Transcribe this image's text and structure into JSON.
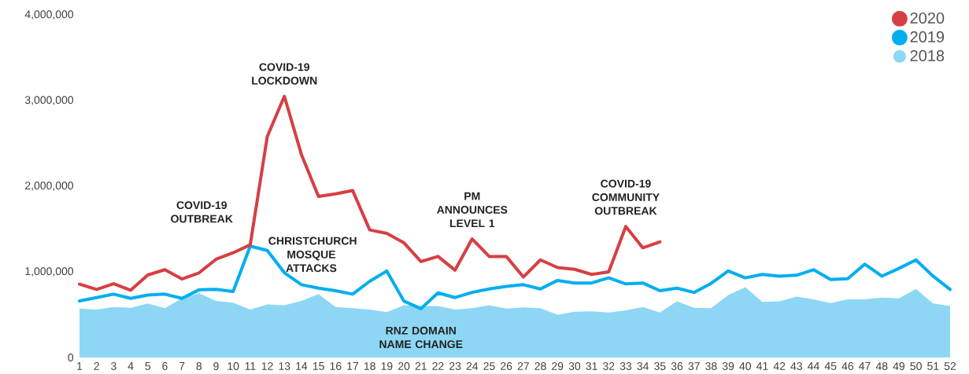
{
  "chart_data": {
    "type": "line",
    "categories": [
      "1",
      "2",
      "3",
      "4",
      "5",
      "6",
      "7",
      "8",
      "9",
      "10",
      "11",
      "12",
      "13",
      "14",
      "15",
      "16",
      "17",
      "18",
      "19",
      "20",
      "21",
      "22",
      "23",
      "24",
      "25",
      "26",
      "27",
      "28",
      "29",
      "30",
      "31",
      "32",
      "33",
      "34",
      "35",
      "36",
      "37",
      "38",
      "39",
      "40",
      "41",
      "42",
      "43",
      "44",
      "45",
      "46",
      "47",
      "48",
      "49",
      "50",
      "51",
      "52"
    ],
    "series": [
      {
        "name": "2018",
        "type": "area",
        "color": "#8dd7f5",
        "values": [
          570000,
          560000,
          590000,
          580000,
          630000,
          575000,
          690000,
          750000,
          660000,
          640000,
          560000,
          620000,
          610000,
          660000,
          740000,
          590000,
          575000,
          560000,
          530000,
          610000,
          600000,
          600000,
          560000,
          575000,
          610000,
          570000,
          585000,
          575000,
          500000,
          535000,
          540000,
          525000,
          550000,
          590000,
          525000,
          655000,
          580000,
          575000,
          730000,
          820000,
          650000,
          655000,
          710000,
          680000,
          635000,
          680000,
          680000,
          700000,
          690000,
          800000,
          630000,
          600000
        ]
      },
      {
        "name": "2019",
        "color": "#00aeef",
        "values": [
          660000,
          700000,
          740000,
          690000,
          730000,
          740000,
          690000,
          790000,
          795000,
          770000,
          1300000,
          1250000,
          990000,
          850000,
          810000,
          780000,
          740000,
          890000,
          1010000,
          660000,
          570000,
          755000,
          700000,
          760000,
          800000,
          830000,
          850000,
          800000,
          900000,
          870000,
          870000,
          930000,
          860000,
          870000,
          780000,
          810000,
          760000,
          865000,
          1010000,
          930000,
          970000,
          950000,
          960000,
          1025000,
          910000,
          920000,
          1090000,
          950000,
          1040000,
          1140000,
          950000,
          795000
        ]
      },
      {
        "name": "2020",
        "color": "#d63f43",
        "values": [
          856000,
          795000,
          862000,
          786000,
          963000,
          1025000,
          917000,
          988000,
          1147000,
          1223000,
          1315000,
          2580000,
          3050000,
          2370000,
          1880000,
          1910000,
          1950000,
          1490000,
          1450000,
          1340000,
          1120000,
          1180000,
          1020000,
          1385000,
          1180000,
          1180000,
          940000,
          1140000,
          1050000,
          1030000,
          970000,
          1000000,
          1530000,
          1280000,
          1350000,
          null,
          null,
          null,
          null,
          null,
          null,
          null,
          null,
          null,
          null,
          null,
          null,
          null,
          null,
          null,
          null,
          null
        ]
      }
    ],
    "ylim": [
      0,
      4000000
    ],
    "yticks": [
      {
        "value": 0,
        "label": "0"
      },
      {
        "value": 1000000,
        "label": "1,000,000"
      },
      {
        "value": 2000000,
        "label": "2,000,000"
      },
      {
        "value": 3000000,
        "label": "3,000,000"
      },
      {
        "value": 4000000,
        "label": "4,000,000"
      }
    ],
    "legend": "top right",
    "marker": "none",
    "line_style": "solid",
    "grid": false,
    "annotations": [
      {
        "text": "COVID-19 OUTBREAK",
        "x": "11",
        "y": 1315000
      },
      {
        "text": "COVID-19 LOCKDOWN",
        "x": "13",
        "y": 3050000
      },
      {
        "text": "CHRISTCHURCH MOSQUE ATTACKS",
        "x": "11",
        "y": 1300000
      },
      {
        "text": "RNZ DOMAIN NAME CHANGE",
        "x": "21",
        "y": 570000
      },
      {
        "text": "PM ANNOUNCES LEVEL 1",
        "x": "24",
        "y": 1385000
      },
      {
        "text": "COVID-19 COMMUNITY OUTBREAK",
        "x": "33",
        "y": 1530000
      }
    ]
  }
}
